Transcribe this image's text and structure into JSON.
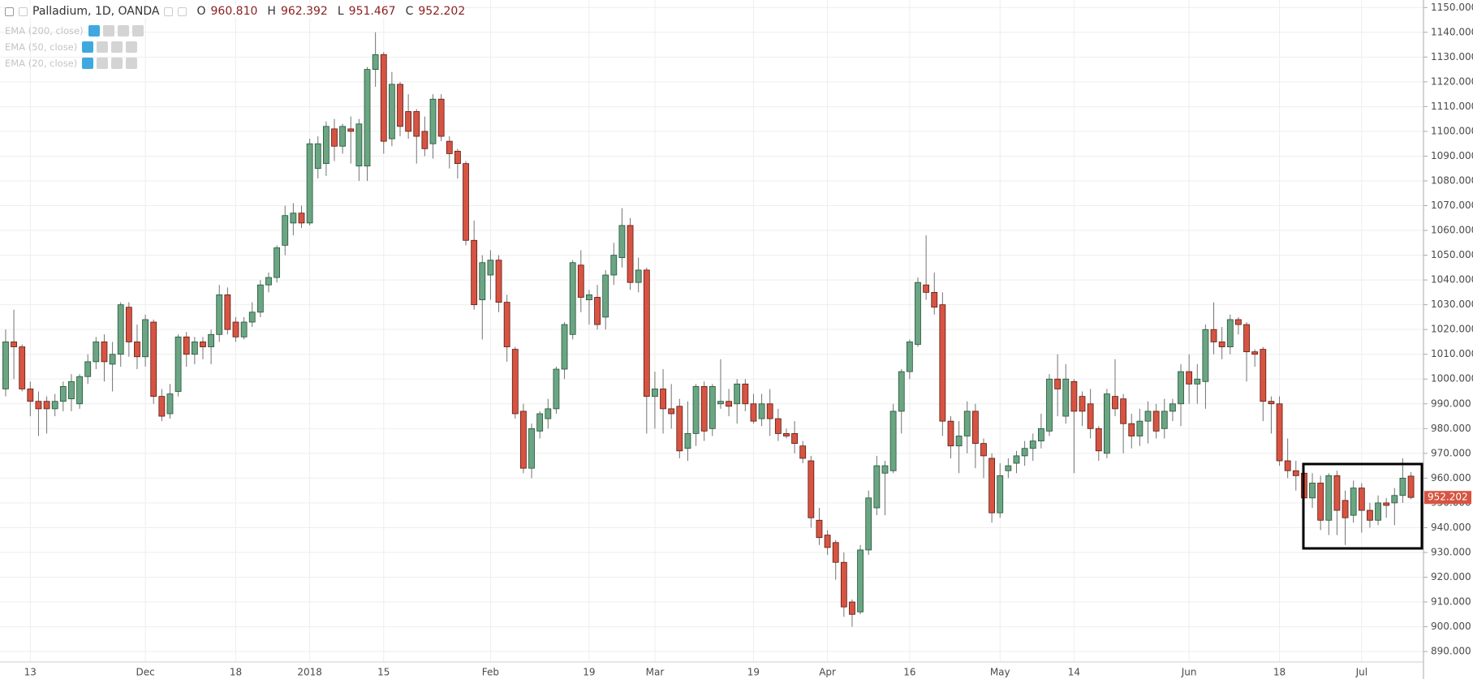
{
  "chart_data": {
    "type": "candlestick",
    "title": "Palladium, 1D, OANDA",
    "ohlc_keys": [
      "O",
      "H",
      "L",
      "C"
    ],
    "last_labels": {
      "open": "960.810",
      "high": "962.392",
      "low": "951.467",
      "close": "952.202"
    },
    "indicators": [
      "EMA (200, close)",
      "EMA (50, close)",
      "EMA (20, close)"
    ],
    "up_color": "#6ba583",
    "up_border": "#225437",
    "down_color": "#d75442",
    "down_border": "#5b1a13",
    "wick_color": "#737375",
    "grid": true,
    "ylim": [
      885.78,
      1153.03
    ],
    "yticks": [
      {
        "value": 890,
        "label": "890.000"
      },
      {
        "value": 900,
        "label": "900.000"
      },
      {
        "value": 910,
        "label": "910.000"
      },
      {
        "value": 920,
        "label": "920.000"
      },
      {
        "value": 930,
        "label": "930.000"
      },
      {
        "value": 940,
        "label": "940.000"
      },
      {
        "value": 950,
        "label": "950.000"
      },
      {
        "value": 960,
        "label": "960.000"
      },
      {
        "value": 970,
        "label": "970.000"
      },
      {
        "value": 980,
        "label": "980.000"
      },
      {
        "value": 990,
        "label": "990.000"
      },
      {
        "value": 1000,
        "label": "1000.000"
      },
      {
        "value": 1010,
        "label": "1010.000"
      },
      {
        "value": 1020,
        "label": "1020.000"
      },
      {
        "value": 1030,
        "label": "1030.000"
      },
      {
        "value": 1040,
        "label": "1040.000"
      },
      {
        "value": 1050,
        "label": "1050.000"
      },
      {
        "value": 1060,
        "label": "1060.000"
      },
      {
        "value": 1070,
        "label": "1070.000"
      },
      {
        "value": 1080,
        "label": "1080.000"
      },
      {
        "value": 1090,
        "label": "1090.000"
      },
      {
        "value": 1100,
        "label": "1100.000"
      },
      {
        "value": 1110,
        "label": "1110.000"
      },
      {
        "value": 1120,
        "label": "1120.000"
      },
      {
        "value": 1130,
        "label": "1130.000"
      },
      {
        "value": 1140,
        "label": "1140.000"
      },
      {
        "value": 1150,
        "label": "1150.000"
      }
    ],
    "categories": [
      null,
      null,
      null,
      "13",
      null,
      null,
      null,
      null,
      null,
      null,
      null,
      null,
      null,
      null,
      null,
      null,
      null,
      "Dec",
      null,
      null,
      null,
      null,
      null,
      null,
      null,
      null,
      null,
      null,
      "18",
      null,
      null,
      null,
      null,
      null,
      null,
      null,
      null,
      "2018",
      null,
      null,
      null,
      null,
      null,
      null,
      null,
      null,
      "15",
      null,
      null,
      null,
      null,
      null,
      null,
      null,
      null,
      null,
      null,
      null,
      null,
      "Feb",
      null,
      null,
      null,
      null,
      null,
      null,
      null,
      null,
      null,
      null,
      null,
      "19",
      null,
      null,
      null,
      null,
      null,
      null,
      null,
      "Mar",
      null,
      null,
      null,
      null,
      null,
      null,
      null,
      null,
      null,
      null,
      null,
      "19",
      null,
      null,
      null,
      null,
      null,
      null,
      null,
      null,
      "Apr",
      null,
      null,
      null,
      null,
      null,
      null,
      null,
      null,
      null,
      "16",
      null,
      null,
      null,
      null,
      null,
      null,
      null,
      null,
      null,
      null,
      "May",
      null,
      null,
      null,
      null,
      null,
      null,
      null,
      null,
      "14",
      null,
      null,
      null,
      null,
      null,
      null,
      null,
      null,
      null,
      null,
      null,
      null,
      null,
      "Jun",
      null,
      null,
      null,
      null,
      null,
      null,
      null,
      null,
      null,
      null,
      "18",
      null,
      null,
      null,
      null,
      null,
      null,
      null,
      null,
      null,
      "Jul",
      null,
      null,
      null,
      null,
      null,
      null
    ],
    "open": [
      996,
      1015,
      1013,
      996,
      991,
      991,
      988,
      991,
      992,
      990,
      1001,
      1007,
      1015,
      1006,
      1010,
      1029,
      1015,
      1009,
      1023,
      993,
      986,
      995,
      1017,
      1010,
      1015,
      1013,
      1018,
      1034,
      1023,
      1017,
      1023,
      1027,
      1038,
      1041,
      1054,
      1063,
      1067,
      1063,
      1085,
      1087,
      1101,
      1094,
      1101,
      1086,
      1086,
      1125,
      1131,
      1097,
      1119,
      1108,
      1108,
      1100,
      1095,
      1113,
      1096,
      1092,
      1087,
      1056,
      1032,
      1042,
      1048,
      1031,
      1012,
      987,
      964,
      979,
      984,
      988,
      1004,
      1018,
      1046,
      1032,
      1033,
      1025,
      1042,
      1049,
      1062,
      1039,
      1044,
      993,
      996,
      988,
      989,
      972,
      978,
      997,
      980,
      990,
      991,
      990,
      998,
      990,
      984,
      990,
      984,
      978,
      978,
      973,
      967,
      943,
      937,
      934,
      926,
      910,
      906,
      931,
      948,
      962,
      963,
      987,
      1003,
      1014,
      1038,
      1035,
      1030,
      983,
      973,
      977,
      987,
      974,
      968,
      946,
      963,
      966,
      969,
      972,
      975,
      979,
      1000,
      985,
      999,
      993,
      990,
      980,
      970,
      993,
      992,
      982,
      977,
      983,
      987,
      980,
      987,
      990,
      1003,
      998,
      999,
      1020,
      1015,
      1013,
      1024,
      1022,
      1011,
      1012,
      991,
      990,
      967,
      963,
      962,
      952,
      958,
      943,
      961,
      951,
      945,
      956,
      947,
      943,
      950,
      950,
      953,
      960.81
    ],
    "high": [
      1020,
      1028,
      1014,
      999,
      995,
      993,
      994,
      999,
      1002,
      1002,
      1010,
      1017,
      1018,
      1015,
      1031,
      1031,
      1022,
      1026,
      1024,
      996,
      998,
      1018,
      1019,
      1017,
      1017,
      1020,
      1038,
      1037,
      1025,
      1025,
      1031,
      1040,
      1043,
      1054,
      1070,
      1071,
      1070,
      1097,
      1098,
      1104,
      1105,
      1103,
      1106,
      1105,
      1126,
      1140,
      1132,
      1124,
      1120,
      1115,
      1109,
      1106,
      1115,
      1115,
      1098,
      1093,
      1088,
      1064,
      1050,
      1052,
      1050,
      1034,
      1013,
      990,
      982,
      987,
      992,
      1005,
      1023,
      1048,
      1052,
      1036,
      1038,
      1044,
      1055,
      1069,
      1065,
      1049,
      1045,
      1003,
      1004,
      998,
      992,
      991,
      998,
      999,
      998,
      1008,
      996,
      1000,
      1000,
      994,
      994,
      996,
      988,
      980,
      983,
      975,
      969,
      948,
      939,
      935,
      930,
      911,
      933,
      955,
      969,
      967,
      990,
      1004,
      1016,
      1041,
      1058,
      1043,
      1035,
      985,
      983,
      991,
      990,
      976,
      970,
      966,
      968,
      971,
      975,
      978,
      986,
      1002,
      1010,
      1006,
      1000,
      995,
      996,
      981,
      996,
      1008,
      994,
      986,
      988,
      991,
      990,
      992,
      992,
      1006,
      1010,
      1006,
      1022,
      1031,
      1021,
      1026,
      1025,
      1023,
      1012,
      1013,
      993,
      993,
      976,
      967,
      963,
      962,
      961,
      962,
      963,
      955,
      959,
      958,
      950,
      953,
      952,
      956,
      968,
      962.392
    ],
    "low": [
      993,
      1000,
      995,
      985,
      977,
      978,
      985,
      987,
      987,
      988,
      998,
      1004,
      999,
      995,
      1005,
      1009,
      1004,
      1005,
      990,
      983,
      984,
      993,
      1005,
      1006,
      1008,
      1006,
      1015,
      1018,
      1015,
      1016,
      1021,
      1025,
      1035,
      1039,
      1050,
      1058,
      1061,
      1062,
      1081,
      1082,
      1088,
      1091,
      1087,
      1080,
      1080,
      1118,
      1091,
      1094,
      1098,
      1097,
      1087,
      1090,
      1089,
      1096,
      1085,
      1081,
      1054,
      1028,
      1016,
      1032,
      1027,
      1007,
      984,
      962,
      960,
      976,
      980,
      986,
      1000,
      1016,
      1027,
      1022,
      1020,
      1020,
      1038,
      1045,
      1036,
      1035,
      978,
      980,
      978,
      980,
      968,
      967,
      973,
      975,
      977,
      988,
      985,
      982,
      987,
      982,
      981,
      977,
      975,
      976,
      970,
      966,
      940,
      933,
      929,
      919,
      904,
      900,
      905,
      929,
      945,
      945,
      962,
      978,
      1000,
      1013,
      1032,
      1026,
      977,
      968,
      962,
      970,
      964,
      960,
      942,
      944,
      960,
      962,
      965,
      967,
      972,
      977,
      985,
      982,
      962,
      981,
      976,
      967,
      968,
      985,
      970,
      972,
      973,
      974,
      976,
      976,
      983,
      981,
      990,
      990,
      988,
      1010,
      1008,
      1010,
      1018,
      999,
      1005,
      983,
      978,
      965,
      960,
      955,
      950,
      948,
      939,
      937,
      937,
      933,
      942,
      938,
      940,
      941,
      944,
      941,
      950,
      951.467
    ],
    "close": [
      1015,
      1013,
      996,
      991,
      988,
      988,
      991,
      997,
      999,
      1001,
      1007,
      1015,
      1007,
      1010,
      1030,
      1015,
      1009,
      1024,
      993,
      985,
      994,
      1017,
      1010,
      1015,
      1013,
      1018,
      1034,
      1020,
      1017,
      1023,
      1027,
      1038,
      1041,
      1053,
      1066,
      1067,
      1063,
      1095,
      1095,
      1102,
      1094,
      1102,
      1100,
      1103,
      1125,
      1131,
      1096,
      1119,
      1102,
      1100,
      1098,
      1093,
      1113,
      1098,
      1091,
      1087,
      1056,
      1030,
      1047,
      1048,
      1031,
      1013,
      986,
      964,
      980,
      986,
      988,
      1004,
      1022,
      1047,
      1033,
      1034,
      1022,
      1042,
      1050,
      1062,
      1039,
      1044,
      993,
      996,
      988,
      986,
      971,
      978,
      997,
      979,
      997,
      991,
      989,
      998,
      990,
      983,
      990,
      984,
      978,
      977,
      974,
      968,
      944,
      936,
      932,
      926,
      908,
      905,
      931,
      952,
      965,
      965,
      987,
      1003,
      1015,
      1039,
      1035,
      1029,
      983,
      973,
      977,
      987,
      974,
      969,
      946,
      961,
      965,
      969,
      972,
      975,
      980,
      1000,
      996,
      1000,
      987,
      987,
      980,
      971,
      994,
      988,
      982,
      977,
      983,
      987,
      979,
      987,
      990,
      1003,
      998,
      1000,
      1020,
      1015,
      1013,
      1024,
      1022,
      1011,
      1010,
      991,
      990,
      967,
      963,
      961,
      952,
      958,
      943,
      961,
      947,
      944,
      956,
      947,
      943,
      950,
      949,
      953,
      960,
      952.202
    ]
  }
}
